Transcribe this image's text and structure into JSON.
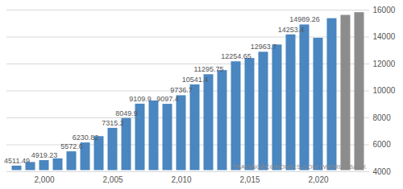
{
  "chart_data": {
    "type": "bar",
    "x": [
      1998,
      1999,
      2000,
      2001,
      2002,
      2003,
      2004,
      2005,
      2006,
      2007,
      2008,
      2009,
      2010,
      2011,
      2012,
      2013,
      2014,
      2015,
      2016,
      2017,
      2018,
      2019,
      2020,
      2021,
      2022,
      2023
    ],
    "values": [
      4511.49,
      4780,
      4919.23,
      5050,
      5572.6,
      6230.82,
      6700,
      7315.2,
      8049.9,
      9109.9,
      9350,
      9097.4,
      9736.7,
      10541.4,
      11295.75,
      11600,
      12254.65,
      12500,
      12963.7,
      13500,
      14253.4,
      14989.26,
      14000,
      15456,
      15700,
      15900
    ],
    "value_labels": [
      "4511.49",
      null,
      "4919.23",
      null,
      "5572.6",
      "6230.82",
      null,
      "7315.2",
      "8049.9",
      "9109.9",
      null,
      "9097.4",
      "9736.7",
      "10541.4",
      "11295.75",
      null,
      "12254.65",
      null,
      "12963.7",
      null,
      "14253.4",
      "14989.26",
      null,
      null,
      null,
      null
    ],
    "data_labels": true,
    "colors": [
      "#4a86c0",
      "#4a86c0",
      "#4a86c0",
      "#4a86c0",
      "#4a86c0",
      "#4a86c0",
      "#4a86c0",
      "#4a86c0",
      "#4a86c0",
      "#4a86c0",
      "#4a86c0",
      "#4a86c0",
      "#4a86c0",
      "#4a86c0",
      "#4a86c0",
      "#4a86c0",
      "#4a86c0",
      "#4a86c0",
      "#4a86c0",
      "#4a86c0",
      "#4a86c0",
      "#4a86c0",
      "#4a86c0",
      "#4a86c0",
      "#8c8c8c",
      "#8c8c8c"
    ],
    "xticks": [
      2000,
      2005,
      2010,
      2015,
      2020
    ],
    "ylim": [
      4000,
      16000
    ],
    "yticks": [
      4000,
      6000,
      8000,
      10000,
      12000,
      14000,
      16000
    ],
    "grid": true,
    "annotation": "TRADINGECONOMICS.COM | WORLD BANK"
  }
}
